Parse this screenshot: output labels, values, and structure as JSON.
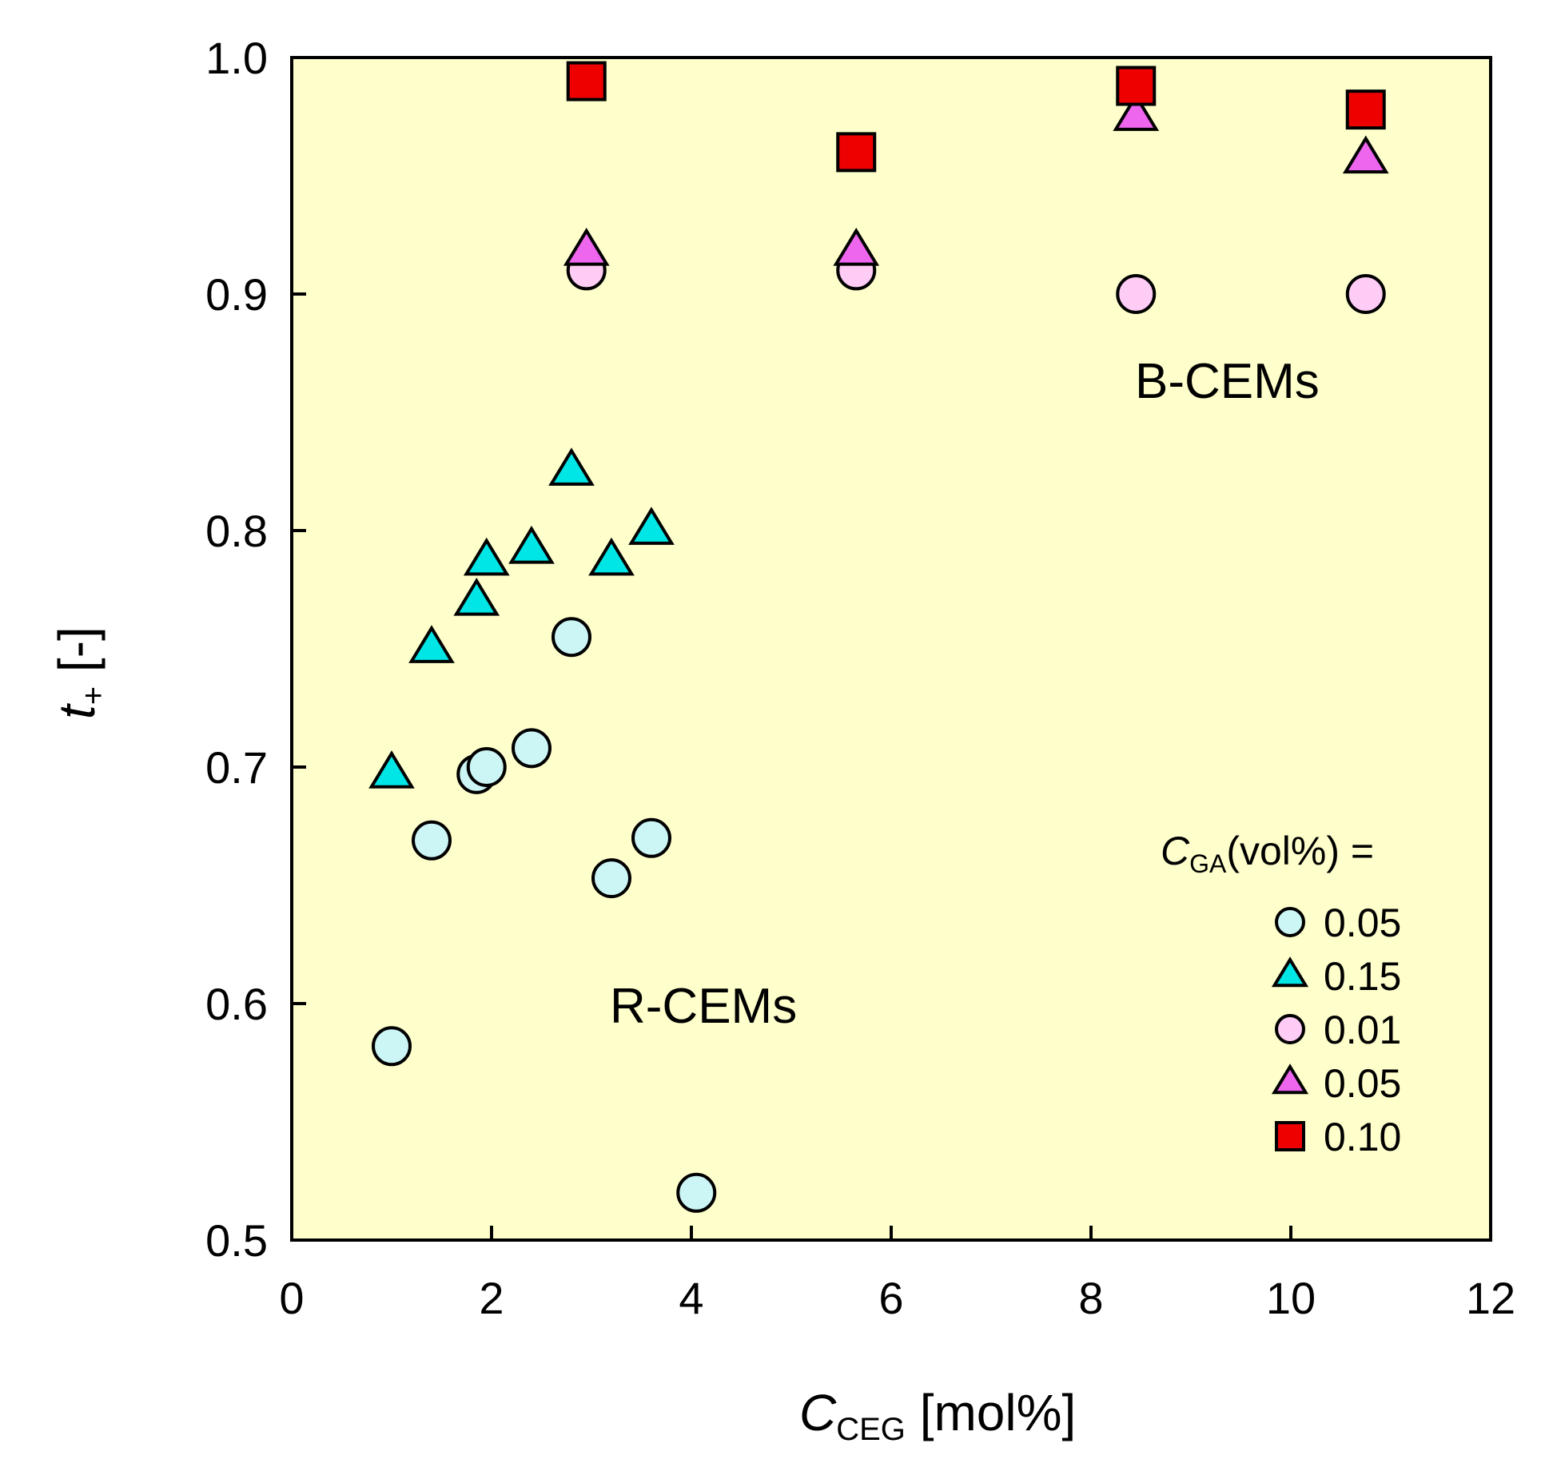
{
  "chart_data": {
    "type": "scatter",
    "xlabel": {
      "main": "C",
      "sub": "CEG",
      "unit": " [mol%]"
    },
    "ylabel": {
      "main": "t",
      "sub": "+",
      "unit": " [-]"
    },
    "xlim": [
      0,
      12
    ],
    "ylim": [
      0.5,
      1.0
    ],
    "xticks": [
      0,
      2,
      4,
      6,
      8,
      10,
      12
    ],
    "yticks": [
      0.5,
      0.6,
      0.7,
      0.8,
      0.9,
      1.0
    ],
    "xtick_labels": [
      "0",
      "2",
      "4",
      "6",
      "8",
      "10",
      "12"
    ],
    "ytick_labels": [
      "0.5",
      "0.6",
      "0.7",
      "0.8",
      "0.9",
      "1.0"
    ],
    "background_color": "#ffffcc",
    "annotations": [
      {
        "text": "B-CEMs",
        "x": 9.5,
        "y": 0.864
      },
      {
        "text": "R-CEMs",
        "x": 4.3,
        "y": 0.6
      }
    ],
    "legend": {
      "title_main": "C",
      "title_sub": "GA",
      "title_unit": "(vol%) =",
      "position": "lower-right"
    },
    "series": [
      {
        "name": "0.05",
        "group": "R-CEMs",
        "marker": "circle",
        "color": "#ccf5f5",
        "points": [
          [
            1.0,
            0.582
          ],
          [
            1.4,
            0.669
          ],
          [
            1.85,
            0.697
          ],
          [
            1.95,
            0.7
          ],
          [
            2.4,
            0.708
          ],
          [
            2.8,
            0.755
          ],
          [
            3.2,
            0.653
          ],
          [
            3.6,
            0.67
          ],
          [
            4.05,
            0.52
          ]
        ]
      },
      {
        "name": "0.15",
        "group": "R-CEMs",
        "marker": "triangle",
        "color": "#00e5e5",
        "points": [
          [
            1.0,
            0.697
          ],
          [
            1.4,
            0.75
          ],
          [
            1.85,
            0.77
          ],
          [
            1.95,
            0.787
          ],
          [
            2.4,
            0.792
          ],
          [
            2.8,
            0.825
          ],
          [
            3.2,
            0.787
          ],
          [
            3.6,
            0.8
          ]
        ]
      },
      {
        "name": "0.01",
        "group": "B-CEMs",
        "marker": "circle",
        "color": "#ffccf5",
        "points": [
          [
            2.95,
            0.91
          ],
          [
            5.65,
            0.91
          ],
          [
            8.45,
            0.9
          ],
          [
            10.75,
            0.9
          ]
        ]
      },
      {
        "name": "0.05",
        "group": "B-CEMs",
        "marker": "triangle",
        "color": "#ee66ee",
        "points": [
          [
            2.95,
            0.918
          ],
          [
            5.65,
            0.918
          ],
          [
            8.45,
            0.975
          ],
          [
            10.75,
            0.957
          ]
        ]
      },
      {
        "name": "0.10",
        "group": "B-CEMs",
        "marker": "square",
        "color": "#ee0000",
        "points": [
          [
            2.95,
            0.99
          ],
          [
            5.65,
            0.96
          ],
          [
            8.45,
            0.988
          ],
          [
            10.75,
            0.978
          ]
        ]
      }
    ]
  }
}
